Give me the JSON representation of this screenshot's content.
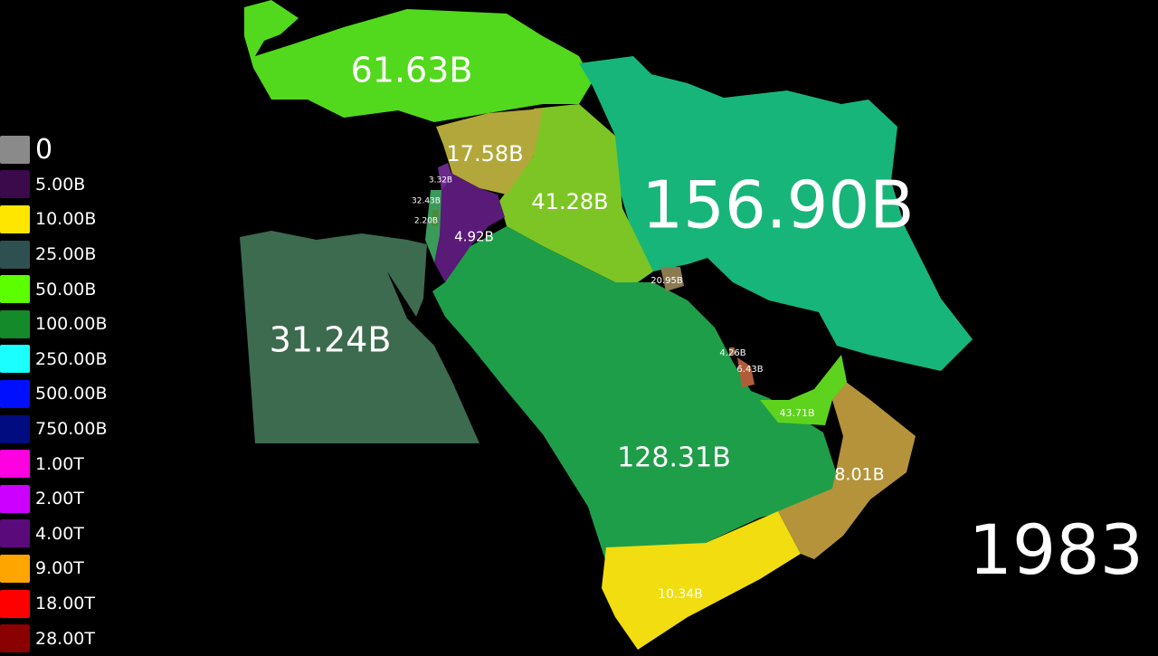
{
  "year": "1983",
  "legend": [
    {
      "label": "0",
      "color": "#8a8a8a"
    },
    {
      "label": "5.00B",
      "color": "#3b0a4a"
    },
    {
      "label": "10.00B",
      "color": "#ffe600"
    },
    {
      "label": "25.00B",
      "color": "#2f5050"
    },
    {
      "label": "50.00B",
      "color": "#5cff00"
    },
    {
      "label": "100.00B",
      "color": "#148a2a"
    },
    {
      "label": "250.00B",
      "color": "#1affff"
    },
    {
      "label": "500.00B",
      "color": "#0010ff"
    },
    {
      "label": "750.00B",
      "color": "#000c80"
    },
    {
      "label": "1.00T",
      "color": "#ff00e0"
    },
    {
      "label": "2.00T",
      "color": "#cc00ff"
    },
    {
      "label": "4.00T",
      "color": "#5a0a7a"
    },
    {
      "label": "9.00T",
      "color": "#ffa500"
    },
    {
      "label": "18.00T",
      "color": "#ff0000"
    },
    {
      "label": "28.00T",
      "color": "#8b0000"
    }
  ],
  "regions": {
    "turkey": {
      "value": "61.63B",
      "color": "#52d81c"
    },
    "iran": {
      "value": "156.90B",
      "color": "#18b57a"
    },
    "iraq": {
      "value": "41.28B",
      "color": "#7dc524"
    },
    "syria": {
      "value": "17.58B",
      "color": "#b2a73a"
    },
    "jordan": {
      "value": "4.92B",
      "color": "#5a1a78"
    },
    "lebanon": {
      "value": "3.32B",
      "color": "#6a2a8a"
    },
    "israel": {
      "value": "32.43B",
      "color": "#3a9a5a"
    },
    "palestine": {
      "value": "2.20B",
      "color": "#4a8a3a"
    },
    "egypt": {
      "value": "31.24B",
      "color": "#3d6b4f"
    },
    "saudi_arabia": {
      "value": "128.31B",
      "color": "#1f9e4a"
    },
    "kuwait": {
      "value": "20.95B",
      "color": "#8a7a50"
    },
    "bahrain": {
      "value": "4.26B",
      "color": "#9a6a40"
    },
    "qatar": {
      "value": "6.43B",
      "color": "#b05e3a"
    },
    "uae": {
      "value": "43.71B",
      "color": "#5ed31d"
    },
    "oman": {
      "value": "8.01B",
      "color": "#b5933a"
    },
    "yemen": {
      "value": "10.34B",
      "color": "#f1dd10"
    }
  }
}
